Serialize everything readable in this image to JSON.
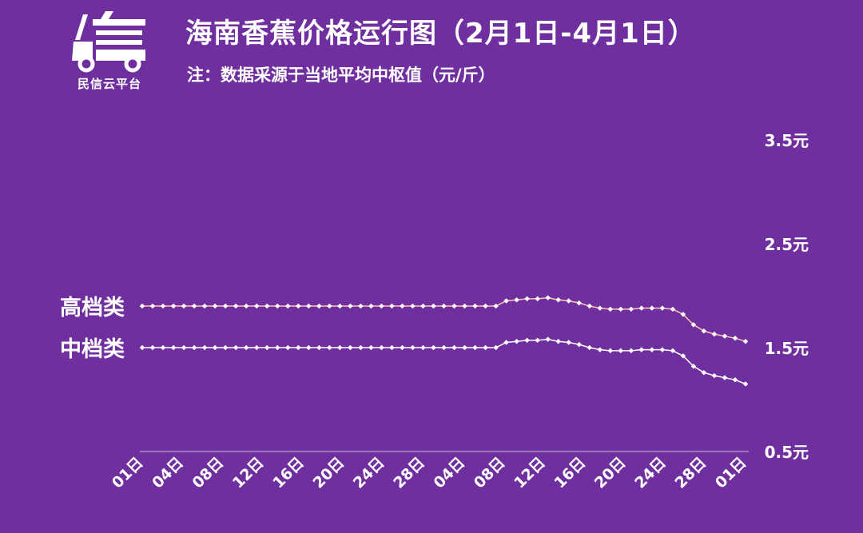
{
  "header": {
    "logo_text": "民信云平台",
    "title": "海南香蕉价格运行图（2月1日-4月1日）",
    "subtitle": "注：数据采源于当地平均中枢值（元/斤）"
  },
  "colors": {
    "background": "#6f2f9e",
    "high_line": "#ffc5b0",
    "mid_line": "#ffffff",
    "text": "#ffffff",
    "axis": "#cdb4e0"
  },
  "chart_data": {
    "type": "line",
    "y_tick_labels": [
      "0.5元",
      "1.5元",
      "2.5元",
      "3.5元"
    ],
    "y_ticks": [
      0.5,
      1.5,
      2.5,
      3.5
    ],
    "ylim": [
      0.5,
      3.5
    ],
    "x_tick_labels": [
      "01日",
      "04日",
      "08日",
      "12日",
      "16日",
      "20日",
      "24日",
      "28日",
      "04日",
      "08日",
      "12日",
      "16日",
      "20日",
      "24日",
      "28日",
      "01日"
    ],
    "grid": false,
    "series": [
      {
        "name": "高档类",
        "values": [
          1.9,
          1.9,
          1.9,
          1.9,
          1.9,
          1.9,
          1.9,
          1.9,
          1.9,
          1.9,
          1.9,
          1.9,
          1.9,
          1.9,
          1.9,
          1.9,
          1.9,
          1.9,
          1.9,
          1.9,
          1.9,
          1.9,
          1.9,
          1.9,
          1.9,
          1.9,
          1.9,
          1.9,
          1.9,
          1.9,
          1.9,
          1.9,
          1.9,
          1.9,
          1.9,
          1.95,
          1.96,
          1.97,
          1.97,
          1.98,
          1.96,
          1.95,
          1.93,
          1.9,
          1.88,
          1.87,
          1.87,
          1.87,
          1.88,
          1.88,
          1.88,
          1.87,
          1.82,
          1.72,
          1.66,
          1.63,
          1.61,
          1.59,
          1.56
        ]
      },
      {
        "name": "中档类",
        "values": [
          1.5,
          1.5,
          1.5,
          1.5,
          1.5,
          1.5,
          1.5,
          1.5,
          1.5,
          1.5,
          1.5,
          1.5,
          1.5,
          1.5,
          1.5,
          1.5,
          1.5,
          1.5,
          1.5,
          1.5,
          1.5,
          1.5,
          1.5,
          1.5,
          1.5,
          1.5,
          1.5,
          1.5,
          1.5,
          1.5,
          1.5,
          1.5,
          1.5,
          1.5,
          1.5,
          1.55,
          1.56,
          1.57,
          1.57,
          1.58,
          1.56,
          1.55,
          1.53,
          1.5,
          1.48,
          1.47,
          1.47,
          1.47,
          1.48,
          1.48,
          1.48,
          1.47,
          1.42,
          1.32,
          1.26,
          1.23,
          1.21,
          1.19,
          1.15
        ]
      }
    ]
  }
}
